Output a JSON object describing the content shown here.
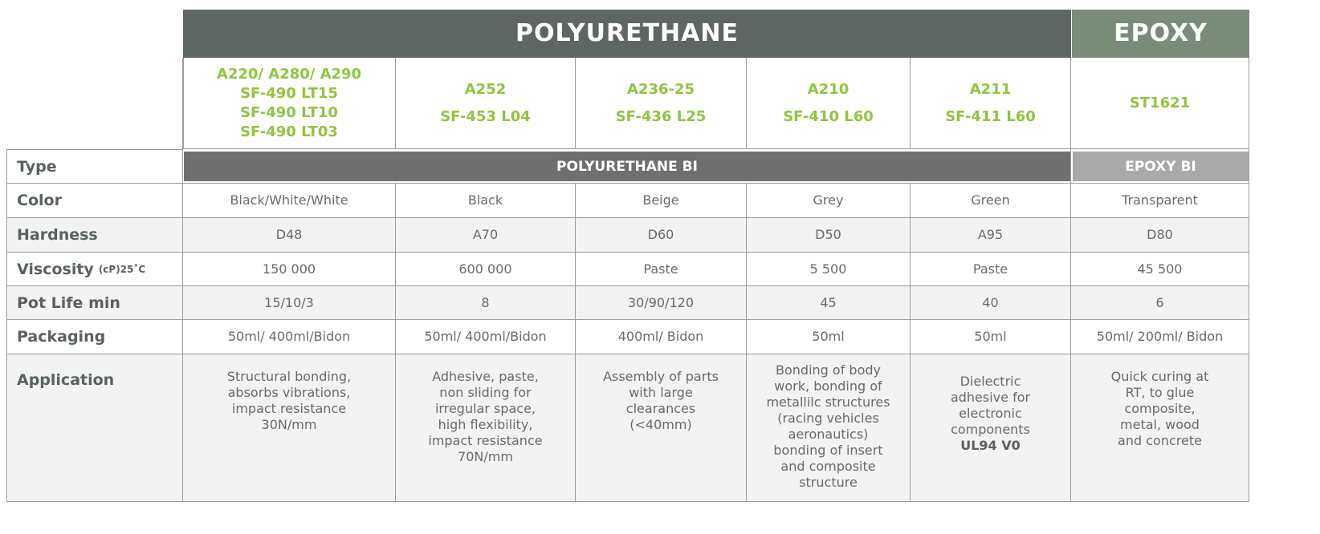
{
  "headers": {
    "polyurethane": "POLYURETHANE",
    "epoxy": "EPOXY",
    "type_pu": "POLYURETHANE BI",
    "type_epoxy": "EPOXY BI"
  },
  "colors": {
    "header_dark": "#5d6662",
    "header_epoxy": "#7b8b79",
    "accent_green": "#8dc63f",
    "type_pu": "#6f6f6f",
    "type_epoxy": "#a9a9a9"
  },
  "products": [
    [
      "A220/ A280/ A290",
      "SF-490 LT15",
      "SF-490 LT10",
      "SF-490 LT03"
    ],
    [
      "A252",
      "SF-453 L04"
    ],
    [
      "A236-25",
      "SF-436 L25"
    ],
    [
      "A210",
      "SF-410 L60"
    ],
    [
      "A211",
      "SF-411 L60"
    ],
    [
      "ST1621"
    ]
  ],
  "labels": {
    "type": "Type",
    "color": "Color",
    "hardness": "Hardness",
    "viscosity": "Viscosity",
    "viscosity_unit": "(cP)25˚C",
    "pot_life": "Pot Life min",
    "packaging": "Packaging",
    "application": "Application"
  },
  "rows": {
    "color": [
      "Black/White/White",
      "Black",
      "Beige",
      "Grey",
      "Green",
      "Transparent"
    ],
    "hardness": [
      "D48",
      "A70",
      "D60",
      "D50",
      "A95",
      "D80"
    ],
    "viscosity": [
      "150 000",
      "600 000",
      "Paste",
      "5 500",
      "Paste",
      "45 500"
    ],
    "pot_life": [
      "15/10/3",
      "8",
      "30/90/120",
      "45",
      "40",
      "6"
    ],
    "packaging": [
      "50ml/ 400ml/Bidon",
      "50ml/ 400ml/Bidon",
      "400ml/ Bidon",
      "50ml",
      "50ml",
      "50ml/ 200ml/ Bidon"
    ],
    "application": [
      "Structural bonding,\nabsorbs vibrations,\nimpact resistance\n30N/mm",
      "Adhesive, paste,\nnon sliding for\nirregular space,\nhigh flexibility,\nimpact resistance\n70N/mm",
      "Assembly of parts\nwith large\nclearances\n(<40mm)",
      "Bonding of body\nwork, bonding of\nmetallilc structures\n(racing vehicles\naeronautics)\nbonding of insert\nand composite\nstructure",
      "Dielectric\nadhesive for\nelectronic\ncomponents",
      "Quick curing at\nRT, to glue\ncomposite,\nmetal, wood\nand concrete"
    ],
    "application_note_a211": "UL94 V0"
  }
}
